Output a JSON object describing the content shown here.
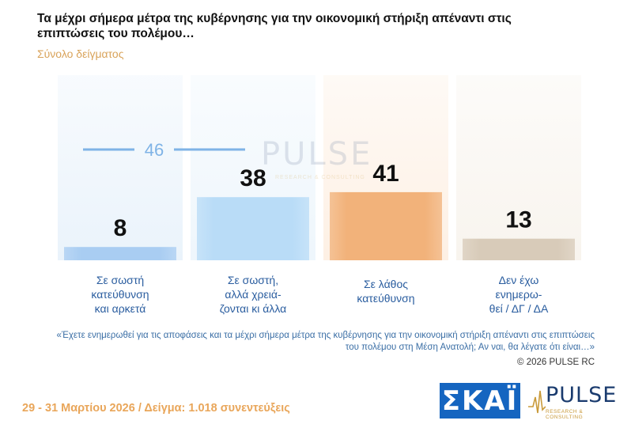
{
  "title": "Τα μέχρι σήμερα μέτρα της κυβέρνησης για την οικονομική στήριξη απέναντι στις επιπτώσεις του πολέμου…",
  "subtitle": "Σύνολο δείγματος",
  "chart_data": {
    "type": "bar",
    "categories": [
      "Σε σωστή κατεύθυνση και αρκετά",
      "Σε σωστή, αλλά χρειά- ζονται κι άλλα",
      "Σε λάθος κατεύθυνση",
      "Δεν έχω ενημερω- θεί / ΔΓ / ΔΑ"
    ],
    "category_lines": [
      [
        "Σε σωστή",
        "κατεύθυνση",
        "και αρκετά"
      ],
      [
        "Σε σωστή,",
        "αλλά χρειά-",
        "ζονται κι άλλα"
      ],
      [
        "Σε λάθος",
        "κατεύθυνση"
      ],
      [
        "Δεν έχω",
        "ενημερω-",
        "θεί / ΔΓ / ΔΑ"
      ]
    ],
    "values": [
      8,
      38,
      41,
      13
    ],
    "bar_colors": [
      "#a9cdf2",
      "#b9dcf7",
      "#f2b27a",
      "#d8cbb9"
    ],
    "column_bg_colors": [
      "#eaf3fb",
      "#eef6fc",
      "#fdf0e4",
      "#f8f4ee"
    ],
    "combined_annotation": {
      "value": 46,
      "label": "46",
      "spans_categories": [
        0,
        1
      ],
      "color": "#7fb3e6"
    },
    "ylim": [
      0,
      100
    ],
    "grid": false,
    "legend": "none"
  },
  "note": "«Έχετε ενημερωθεί για τις αποφάσεις και τα μέχρι σήμερα  μέτρα της κυβέρνησης για την οικονομική στήριξη απέναντι στις επιπτώσεις του πολέμου στη Μέση Ανατολή; Αν ναι, θα λέγατε ότι είναι…»",
  "copyright": "©  2026  PULSE RC",
  "footer": "29 - 31  Μαρτίου 2026  /  Δείγμα:  1.018 συνεντεύξεις",
  "logos": {
    "skai": "ΣΚΑΪ",
    "pulse": "PULSE",
    "pulse_sub": "RESEARCH & CONSULTING"
  },
  "watermark": {
    "text": "PULSE",
    "sub": "RESEARCH & CONSULTING"
  }
}
